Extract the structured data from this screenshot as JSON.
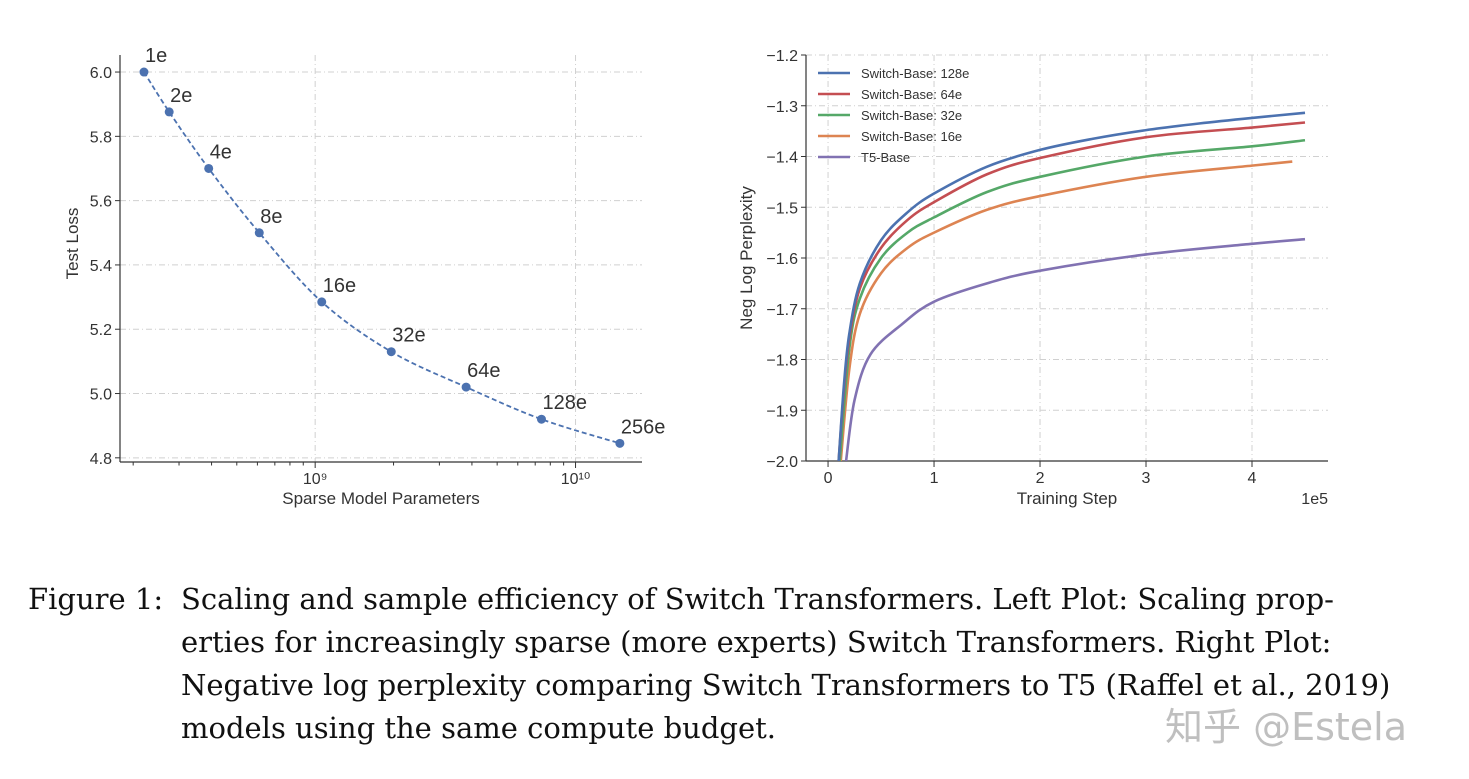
{
  "chart_data": [
    {
      "type": "line",
      "xlabel": "Sparse Model Parameters",
      "ylabel": "Test Loss",
      "xscale": "log",
      "xlim": [
        178000000.0,
        18000000000.0
      ],
      "ylim": [
        4.787,
        6.053
      ],
      "grid": true,
      "line_style": "dashed with markers",
      "color": "#4c72b0",
      "xticks": [
        {
          "value": 1000000000.0,
          "label": "10⁹"
        },
        {
          "value": 10000000000.0,
          "label": "10¹⁰"
        }
      ],
      "yticks": [
        "4.8",
        "5.0",
        "5.2",
        "5.4",
        "5.6",
        "5.8",
        "6.0"
      ],
      "points": [
        {
          "label": "1e",
          "x": 220000000.0,
          "y": 6.0
        },
        {
          "label": "2e",
          "x": 275000000.0,
          "y": 5.876
        },
        {
          "label": "4e",
          "x": 390000000.0,
          "y": 5.7
        },
        {
          "label": "8e",
          "x": 610000000.0,
          "y": 5.5
        },
        {
          "label": "16e",
          "x": 1060000000.0,
          "y": 5.285
        },
        {
          "label": "32e",
          "x": 1960000000.0,
          "y": 5.13
        },
        {
          "label": "64e",
          "x": 3800000000.0,
          "y": 5.02
        },
        {
          "label": "128e",
          "x": 7400000000.0,
          "y": 4.92
        },
        {
          "label": "256e",
          "x": 14800000000.0,
          "y": 4.845
        }
      ]
    },
    {
      "type": "line",
      "xlabel": "Training Step",
      "ylabel": "Neg Log Perplexity",
      "x_offset_label": "1e5",
      "xlim": [
        -0.208,
        4.717
      ],
      "ylim": [
        -2.0,
        -1.2
      ],
      "grid": true,
      "legend": "top-left",
      "xticks": [
        "0",
        "1",
        "2",
        "3",
        "4"
      ],
      "yticks": [
        "−2.0",
        "−1.9",
        "−1.8",
        "−1.7",
        "−1.6",
        "−1.5",
        "−1.4",
        "−1.3",
        "−1.2"
      ],
      "series": [
        {
          "name": "Switch-Base: 128e",
          "color": "#4c72b0",
          "x": [
            0.1,
            0.15,
            0.2,
            0.3,
            0.5,
            0.75,
            1,
            1.5,
            2,
            2.5,
            3,
            3.5,
            4,
            4.5
          ],
          "y": [
            -2.0,
            -1.85,
            -1.75,
            -1.65,
            -1.565,
            -1.51,
            -1.473,
            -1.42,
            -1.387,
            -1.365,
            -1.348,
            -1.335,
            -1.324,
            -1.314
          ]
        },
        {
          "name": "Switch-Base: 64e",
          "color": "#c44e52",
          "x": [
            0.1,
            0.15,
            0.2,
            0.3,
            0.5,
            0.75,
            1,
            1.5,
            2,
            3,
            4,
            4.5
          ],
          "y": [
            -2.0,
            -1.86,
            -1.76,
            -1.66,
            -1.58,
            -1.525,
            -1.49,
            -1.435,
            -1.403,
            -1.362,
            -1.343,
            -1.333
          ]
        },
        {
          "name": "Switch-Base: 32e",
          "color": "#55a868",
          "x": [
            0.11,
            0.2,
            0.3,
            0.5,
            0.75,
            1,
            1.5,
            2,
            3,
            4,
            4.5
          ],
          "y": [
            -2.0,
            -1.78,
            -1.68,
            -1.6,
            -1.55,
            -1.52,
            -1.47,
            -1.44,
            -1.4,
            -1.38,
            -1.368
          ]
        },
        {
          "name": "Switch-Base: 16e",
          "color": "#dd8452",
          "x": [
            0.12,
            0.2,
            0.3,
            0.5,
            0.75,
            1,
            1.5,
            2,
            3,
            4,
            4.38
          ],
          "y": [
            -2.0,
            -1.82,
            -1.71,
            -1.63,
            -1.58,
            -1.55,
            -1.505,
            -1.478,
            -1.44,
            -1.418,
            -1.41
          ]
        },
        {
          "name": "T5-Base",
          "color": "#8172b2",
          "x": [
            0.17,
            0.25,
            0.4,
            0.7,
            1,
            1.5,
            2,
            3,
            4,
            4.5
          ],
          "y": [
            -2.0,
            -1.88,
            -1.79,
            -1.73,
            -1.686,
            -1.65,
            -1.625,
            -1.593,
            -1.572,
            -1.563
          ]
        }
      ]
    }
  ],
  "caption": {
    "label": "Figure 1:",
    "lines": [
      "Scaling and sample efficiency of Switch Transformers.  Left Plot: Scaling prop-",
      "erties for increasingly sparse (more experts) Switch Transformers.  Right Plot:",
      "Negative log perplexity comparing Switch Transformers to T5 (Raffel et al., 2019)",
      "models using the same compute budget."
    ]
  },
  "watermark": "知乎 @Estela"
}
